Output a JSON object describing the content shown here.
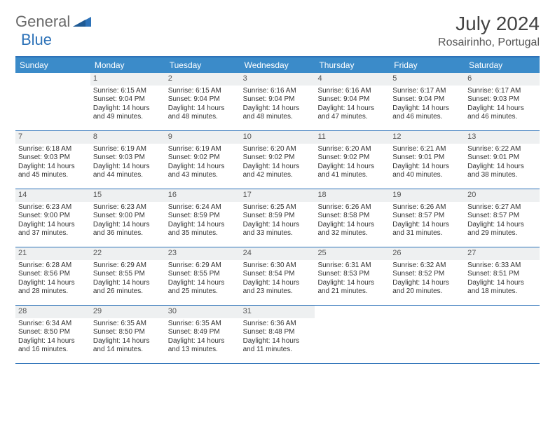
{
  "logo": {
    "general": "General",
    "blue": "Blue",
    "icon_color": "#2d72b8"
  },
  "header": {
    "title": "July 2024",
    "location": "Rosairinho, Portugal"
  },
  "colors": {
    "header_bar": "#3b8bc9",
    "border": "#2d72b8",
    "daynum_bg": "#eef0f1",
    "text": "#333333",
    "title_text": "#444444"
  },
  "days_of_week": [
    "Sunday",
    "Monday",
    "Tuesday",
    "Wednesday",
    "Thursday",
    "Friday",
    "Saturday"
  ],
  "weeks": [
    [
      {
        "n": "",
        "lines": []
      },
      {
        "n": "1",
        "lines": [
          "Sunrise: 6:15 AM",
          "Sunset: 9:04 PM",
          "Daylight: 14 hours",
          "and 49 minutes."
        ]
      },
      {
        "n": "2",
        "lines": [
          "Sunrise: 6:15 AM",
          "Sunset: 9:04 PM",
          "Daylight: 14 hours",
          "and 48 minutes."
        ]
      },
      {
        "n": "3",
        "lines": [
          "Sunrise: 6:16 AM",
          "Sunset: 9:04 PM",
          "Daylight: 14 hours",
          "and 48 minutes."
        ]
      },
      {
        "n": "4",
        "lines": [
          "Sunrise: 6:16 AM",
          "Sunset: 9:04 PM",
          "Daylight: 14 hours",
          "and 47 minutes."
        ]
      },
      {
        "n": "5",
        "lines": [
          "Sunrise: 6:17 AM",
          "Sunset: 9:04 PM",
          "Daylight: 14 hours",
          "and 46 minutes."
        ]
      },
      {
        "n": "6",
        "lines": [
          "Sunrise: 6:17 AM",
          "Sunset: 9:03 PM",
          "Daylight: 14 hours",
          "and 46 minutes."
        ]
      }
    ],
    [
      {
        "n": "7",
        "lines": [
          "Sunrise: 6:18 AM",
          "Sunset: 9:03 PM",
          "Daylight: 14 hours",
          "and 45 minutes."
        ]
      },
      {
        "n": "8",
        "lines": [
          "Sunrise: 6:19 AM",
          "Sunset: 9:03 PM",
          "Daylight: 14 hours",
          "and 44 minutes."
        ]
      },
      {
        "n": "9",
        "lines": [
          "Sunrise: 6:19 AM",
          "Sunset: 9:02 PM",
          "Daylight: 14 hours",
          "and 43 minutes."
        ]
      },
      {
        "n": "10",
        "lines": [
          "Sunrise: 6:20 AM",
          "Sunset: 9:02 PM",
          "Daylight: 14 hours",
          "and 42 minutes."
        ]
      },
      {
        "n": "11",
        "lines": [
          "Sunrise: 6:20 AM",
          "Sunset: 9:02 PM",
          "Daylight: 14 hours",
          "and 41 minutes."
        ]
      },
      {
        "n": "12",
        "lines": [
          "Sunrise: 6:21 AM",
          "Sunset: 9:01 PM",
          "Daylight: 14 hours",
          "and 40 minutes."
        ]
      },
      {
        "n": "13",
        "lines": [
          "Sunrise: 6:22 AM",
          "Sunset: 9:01 PM",
          "Daylight: 14 hours",
          "and 38 minutes."
        ]
      }
    ],
    [
      {
        "n": "14",
        "lines": [
          "Sunrise: 6:23 AM",
          "Sunset: 9:00 PM",
          "Daylight: 14 hours",
          "and 37 minutes."
        ]
      },
      {
        "n": "15",
        "lines": [
          "Sunrise: 6:23 AM",
          "Sunset: 9:00 PM",
          "Daylight: 14 hours",
          "and 36 minutes."
        ]
      },
      {
        "n": "16",
        "lines": [
          "Sunrise: 6:24 AM",
          "Sunset: 8:59 PM",
          "Daylight: 14 hours",
          "and 35 minutes."
        ]
      },
      {
        "n": "17",
        "lines": [
          "Sunrise: 6:25 AM",
          "Sunset: 8:59 PM",
          "Daylight: 14 hours",
          "and 33 minutes."
        ]
      },
      {
        "n": "18",
        "lines": [
          "Sunrise: 6:26 AM",
          "Sunset: 8:58 PM",
          "Daylight: 14 hours",
          "and 32 minutes."
        ]
      },
      {
        "n": "19",
        "lines": [
          "Sunrise: 6:26 AM",
          "Sunset: 8:57 PM",
          "Daylight: 14 hours",
          "and 31 minutes."
        ]
      },
      {
        "n": "20",
        "lines": [
          "Sunrise: 6:27 AM",
          "Sunset: 8:57 PM",
          "Daylight: 14 hours",
          "and 29 minutes."
        ]
      }
    ],
    [
      {
        "n": "21",
        "lines": [
          "Sunrise: 6:28 AM",
          "Sunset: 8:56 PM",
          "Daylight: 14 hours",
          "and 28 minutes."
        ]
      },
      {
        "n": "22",
        "lines": [
          "Sunrise: 6:29 AM",
          "Sunset: 8:55 PM",
          "Daylight: 14 hours",
          "and 26 minutes."
        ]
      },
      {
        "n": "23",
        "lines": [
          "Sunrise: 6:29 AM",
          "Sunset: 8:55 PM",
          "Daylight: 14 hours",
          "and 25 minutes."
        ]
      },
      {
        "n": "24",
        "lines": [
          "Sunrise: 6:30 AM",
          "Sunset: 8:54 PM",
          "Daylight: 14 hours",
          "and 23 minutes."
        ]
      },
      {
        "n": "25",
        "lines": [
          "Sunrise: 6:31 AM",
          "Sunset: 8:53 PM",
          "Daylight: 14 hours",
          "and 21 minutes."
        ]
      },
      {
        "n": "26",
        "lines": [
          "Sunrise: 6:32 AM",
          "Sunset: 8:52 PM",
          "Daylight: 14 hours",
          "and 20 minutes."
        ]
      },
      {
        "n": "27",
        "lines": [
          "Sunrise: 6:33 AM",
          "Sunset: 8:51 PM",
          "Daylight: 14 hours",
          "and 18 minutes."
        ]
      }
    ],
    [
      {
        "n": "28",
        "lines": [
          "Sunrise: 6:34 AM",
          "Sunset: 8:50 PM",
          "Daylight: 14 hours",
          "and 16 minutes."
        ]
      },
      {
        "n": "29",
        "lines": [
          "Sunrise: 6:35 AM",
          "Sunset: 8:50 PM",
          "Daylight: 14 hours",
          "and 14 minutes."
        ]
      },
      {
        "n": "30",
        "lines": [
          "Sunrise: 6:35 AM",
          "Sunset: 8:49 PM",
          "Daylight: 14 hours",
          "and 13 minutes."
        ]
      },
      {
        "n": "31",
        "lines": [
          "Sunrise: 6:36 AM",
          "Sunset: 8:48 PM",
          "Daylight: 14 hours",
          "and 11 minutes."
        ]
      },
      {
        "n": "",
        "lines": []
      },
      {
        "n": "",
        "lines": []
      },
      {
        "n": "",
        "lines": []
      }
    ]
  ]
}
